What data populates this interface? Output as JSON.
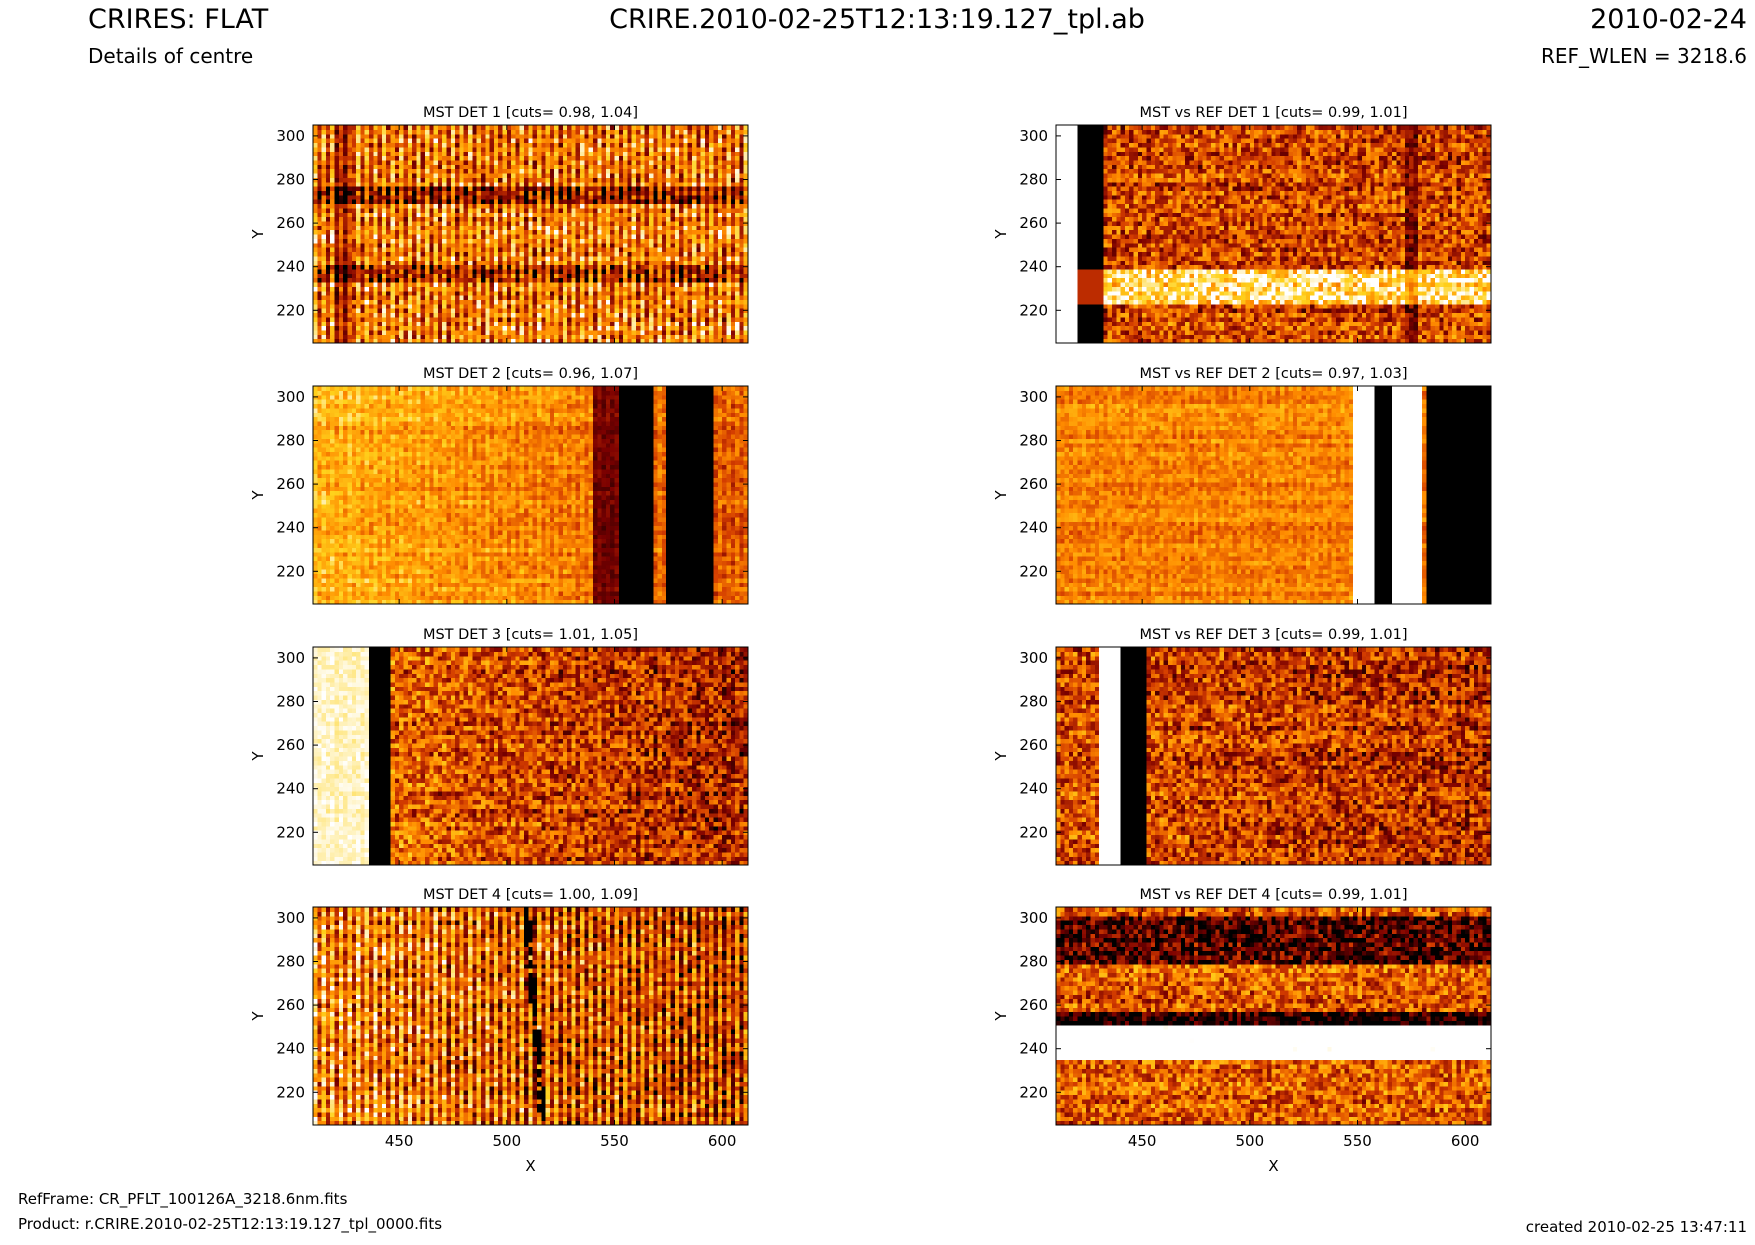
{
  "header": {
    "title_left": "CRIRES: FLAT",
    "subtitle_left": "Details of centre",
    "title_center": "CRIRE.2010-02-25T12:13:19.127_tpl.ab",
    "title_right": "2010-02-24",
    "subtitle_right": "REF_WLEN = 3218.6"
  },
  "footer": {
    "ref_frame": "RefFrame: CR_PFLT_100126A_3218.6nm.fits",
    "product": "Product: r.CRIRE.2010-02-25T12:13:19.127_tpl_0000.fits",
    "created": "created 2010-02-25 13:47:11"
  },
  "colormap": [
    "#000000",
    "#7a0000",
    "#d23b00",
    "#ff8c00",
    "#ffd21c",
    "#ffffff"
  ],
  "chart_data": [
    {
      "type": "heatmap",
      "title": "MST DET 1 [cuts= 0.98, 1.04]",
      "xlabel": "",
      "ylabel": "Y",
      "xlim": [
        410,
        612
      ],
      "ylim": [
        205,
        305
      ],
      "xticks": [
        450,
        500,
        550,
        600
      ],
      "yticks": [
        220,
        240,
        260,
        280,
        300
      ],
      "pattern": "det1_mst",
      "features": [
        {
          "kind": "dark-column",
          "x": [
            420,
            428
          ],
          "strength": 0.35
        },
        {
          "kind": "dark-row",
          "y": [
            270,
            276
          ],
          "strength": 0.3
        },
        {
          "kind": "dark-row",
          "y": [
            234,
            240
          ],
          "strength": 0.25
        }
      ]
    },
    {
      "type": "heatmap",
      "title": "MST vs REF DET 1 [cuts= 0.99, 1.01]",
      "xlabel": "",
      "ylabel": "Y",
      "xlim": [
        410,
        612
      ],
      "ylim": [
        205,
        305
      ],
      "xticks": [
        450,
        500,
        550,
        600
      ],
      "yticks": [
        220,
        240,
        260,
        280,
        300
      ],
      "pattern": "det1_ref",
      "features": [
        {
          "kind": "bright-column",
          "x": [
            410,
            421
          ],
          "strength": 1.0
        },
        {
          "kind": "dark-column",
          "x": [
            421,
            431
          ],
          "strength": 1.0
        },
        {
          "kind": "dark-column",
          "x": [
            572,
            578
          ],
          "strength": 0.4
        },
        {
          "kind": "bright-row",
          "y": [
            224,
            238
          ],
          "strength": 0.45
        }
      ]
    },
    {
      "type": "heatmap",
      "title": "MST DET 2 [cuts= 0.96, 1.07]",
      "xlabel": "",
      "ylabel": "Y",
      "xlim": [
        410,
        612
      ],
      "ylim": [
        205,
        305
      ],
      "xticks": [
        450,
        500,
        550,
        600
      ],
      "yticks": [
        220,
        240,
        260,
        280,
        300
      ],
      "pattern": "det2_mst",
      "features": [
        {
          "kind": "dark-column",
          "x": [
            552,
            568
          ],
          "strength": 1.0
        },
        {
          "kind": "dark-column",
          "x": [
            575,
            596
          ],
          "strength": 1.0
        },
        {
          "kind": "dark-column",
          "x": [
            540,
            552
          ],
          "strength": 0.55
        }
      ]
    },
    {
      "type": "heatmap",
      "title": "MST vs REF DET 2 [cuts= 0.97, 1.03]",
      "xlabel": "",
      "ylabel": "Y",
      "xlim": [
        410,
        612
      ],
      "ylim": [
        205,
        305
      ],
      "xticks": [
        450,
        500,
        550,
        600
      ],
      "yticks": [
        220,
        240,
        260,
        280,
        300
      ],
      "pattern": "det2_ref",
      "features": [
        {
          "kind": "bright-column",
          "x": [
            548,
            558
          ],
          "strength": 1.0
        },
        {
          "kind": "dark-column",
          "x": [
            558,
            565
          ],
          "strength": 1.0
        },
        {
          "kind": "bright-column",
          "x": [
            567,
            580
          ],
          "strength": 1.0
        },
        {
          "kind": "dark-column",
          "x": [
            582,
            612
          ],
          "strength": 0.9
        }
      ]
    },
    {
      "type": "heatmap",
      "title": "MST DET 3 [cuts= 1.01, 1.05]",
      "xlabel": "",
      "ylabel": "Y",
      "xlim": [
        410,
        612
      ],
      "ylim": [
        205,
        305
      ],
      "xticks": [
        450,
        500,
        550,
        600
      ],
      "yticks": [
        220,
        240,
        260,
        280,
        300
      ],
      "pattern": "det3_mst",
      "features": [
        {
          "kind": "bright-column",
          "x": [
            410,
            437
          ],
          "strength": 0.8
        },
        {
          "kind": "dark-column",
          "x": [
            437,
            446
          ],
          "strength": 1.0
        }
      ]
    },
    {
      "type": "heatmap",
      "title": "MST vs REF DET 3 [cuts= 0.99, 1.01]",
      "xlabel": "",
      "ylabel": "Y",
      "xlim": [
        410,
        612
      ],
      "ylim": [
        205,
        305
      ],
      "xticks": [
        450,
        500,
        550,
        600
      ],
      "yticks": [
        220,
        240,
        260,
        280,
        300
      ],
      "pattern": "det3_ref",
      "features": [
        {
          "kind": "bright-column",
          "x": [
            431,
            440
          ],
          "strength": 1.0
        },
        {
          "kind": "dark-column",
          "x": [
            441,
            452
          ],
          "strength": 1.0
        }
      ]
    },
    {
      "type": "heatmap",
      "title": "MST DET 4 [cuts= 1.00, 1.09]",
      "xlabel": "X",
      "ylabel": "Y",
      "xlim": [
        410,
        612
      ],
      "ylim": [
        205,
        305
      ],
      "xticks": [
        450,
        500,
        550,
        600
      ],
      "yticks": [
        220,
        240,
        260,
        280,
        300
      ],
      "pattern": "det4_mst",
      "features": [
        {
          "kind": "dark-line",
          "x": [
            509,
            517
          ],
          "strength": 1.0
        }
      ]
    },
    {
      "type": "heatmap",
      "title": "MST vs REF DET 4 [cuts= 0.99, 1.01]",
      "xlabel": "X",
      "ylabel": "Y",
      "xlim": [
        410,
        612
      ],
      "ylim": [
        205,
        305
      ],
      "xticks": [
        450,
        500,
        550,
        600
      ],
      "yticks": [
        220,
        240,
        260,
        280,
        300
      ],
      "pattern": "det4_ref",
      "features": [
        {
          "kind": "bright-row",
          "y": [
            236,
            250
          ],
          "strength": 0.8
        },
        {
          "kind": "dark-row",
          "y": [
            252,
            256
          ],
          "strength": 0.5
        },
        {
          "kind": "dark-row",
          "y": [
            280,
            300
          ],
          "strength": 0.35
        }
      ]
    }
  ]
}
